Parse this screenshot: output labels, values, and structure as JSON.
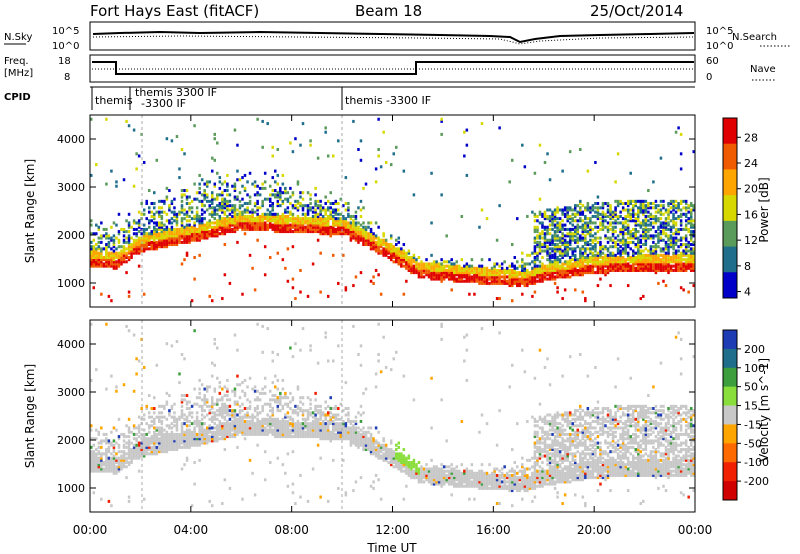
{
  "header": {
    "station": "Fort Hays East (fitACF)",
    "beam": "Beam 18",
    "date": "25/Oct/2014"
  },
  "noise_panel": {
    "left_label": "N.Sky",
    "left_ticks": [
      "10^5",
      "10^0"
    ],
    "right_label": "N.Search",
    "right_ticks": [
      "10^5",
      "10^0"
    ]
  },
  "freq_panel": {
    "left_label_1": "Freq.",
    "left_label_2": "[MHz]",
    "left_ticks": [
      "18",
      "8"
    ],
    "right_label": "Nave",
    "right_ticks": [
      "60",
      "0"
    ]
  },
  "cpid": {
    "label": "CPID",
    "segments": [
      {
        "lines": [
          "themis"
        ]
      },
      {
        "lines": [
          "themis 3300 IF",
          "-3300 IF"
        ]
      },
      {
        "lines": [
          "themis -3300 IF"
        ]
      }
    ]
  },
  "chart_data": [
    {
      "type": "heatmap",
      "name": "power",
      "ylabel": "Slant Range [km]",
      "xlabel": "Time UT",
      "xlim_hours": [
        0,
        24
      ],
      "ylim_km": [
        500,
        4500
      ],
      "x_ticks": [
        "00:00",
        "04:00",
        "08:00",
        "12:00",
        "16:00",
        "20:00",
        "00:00"
      ],
      "y_ticks": [
        "1000",
        "2000",
        "3000",
        "4000"
      ],
      "colorbar": {
        "label": "Power [dB]",
        "ticks": [
          "28",
          "24",
          "20",
          "16",
          "12",
          "8",
          "4"
        ],
        "colors": [
          "#e00000",
          "#f05a00",
          "#ffa500",
          "#d7d800",
          "#5a9a5a",
          "#1e6e8c",
          "#0000c8"
        ]
      },
      "approx_echo_center_km": [
        [
          0.0,
          1400
        ],
        [
          1.0,
          1350
        ],
        [
          2.0,
          1700
        ],
        [
          4.0,
          1900
        ],
        [
          6.0,
          2150
        ],
        [
          8.0,
          2100
        ],
        [
          10.0,
          2050
        ],
        [
          12.0,
          1500
        ],
        [
          13.0,
          1150
        ],
        [
          15.0,
          1050
        ],
        [
          16.5,
          1000
        ],
        [
          17.0,
          950
        ],
        [
          18.0,
          1100
        ],
        [
          20.0,
          1250
        ],
        [
          22.0,
          1300
        ],
        [
          24.0,
          1300
        ]
      ]
    },
    {
      "type": "heatmap",
      "name": "velocity",
      "ylabel": "Slant Range [km]",
      "xlabel": "Time UT",
      "xlim_hours": [
        0,
        24
      ],
      "ylim_km": [
        500,
        4500
      ],
      "x_ticks": [
        "00:00",
        "04:00",
        "08:00",
        "12:00",
        "16:00",
        "20:00",
        "00:00"
      ],
      "y_ticks": [
        "1000",
        "2000",
        "3000",
        "4000"
      ],
      "colorbar": {
        "label": "Velocity [m s^-1]",
        "ticks": [
          "200",
          "100",
          "50",
          "15",
          "-15",
          "-50",
          "-100",
          "-200"
        ],
        "colors": [
          "#1e3cb4",
          "#1e6e8c",
          "#3c9e3c",
          "#8ade3c",
          "#c8c8c8",
          "#ffa500",
          "#ff6a00",
          "#f02000",
          "#d00000"
        ]
      }
    }
  ]
}
